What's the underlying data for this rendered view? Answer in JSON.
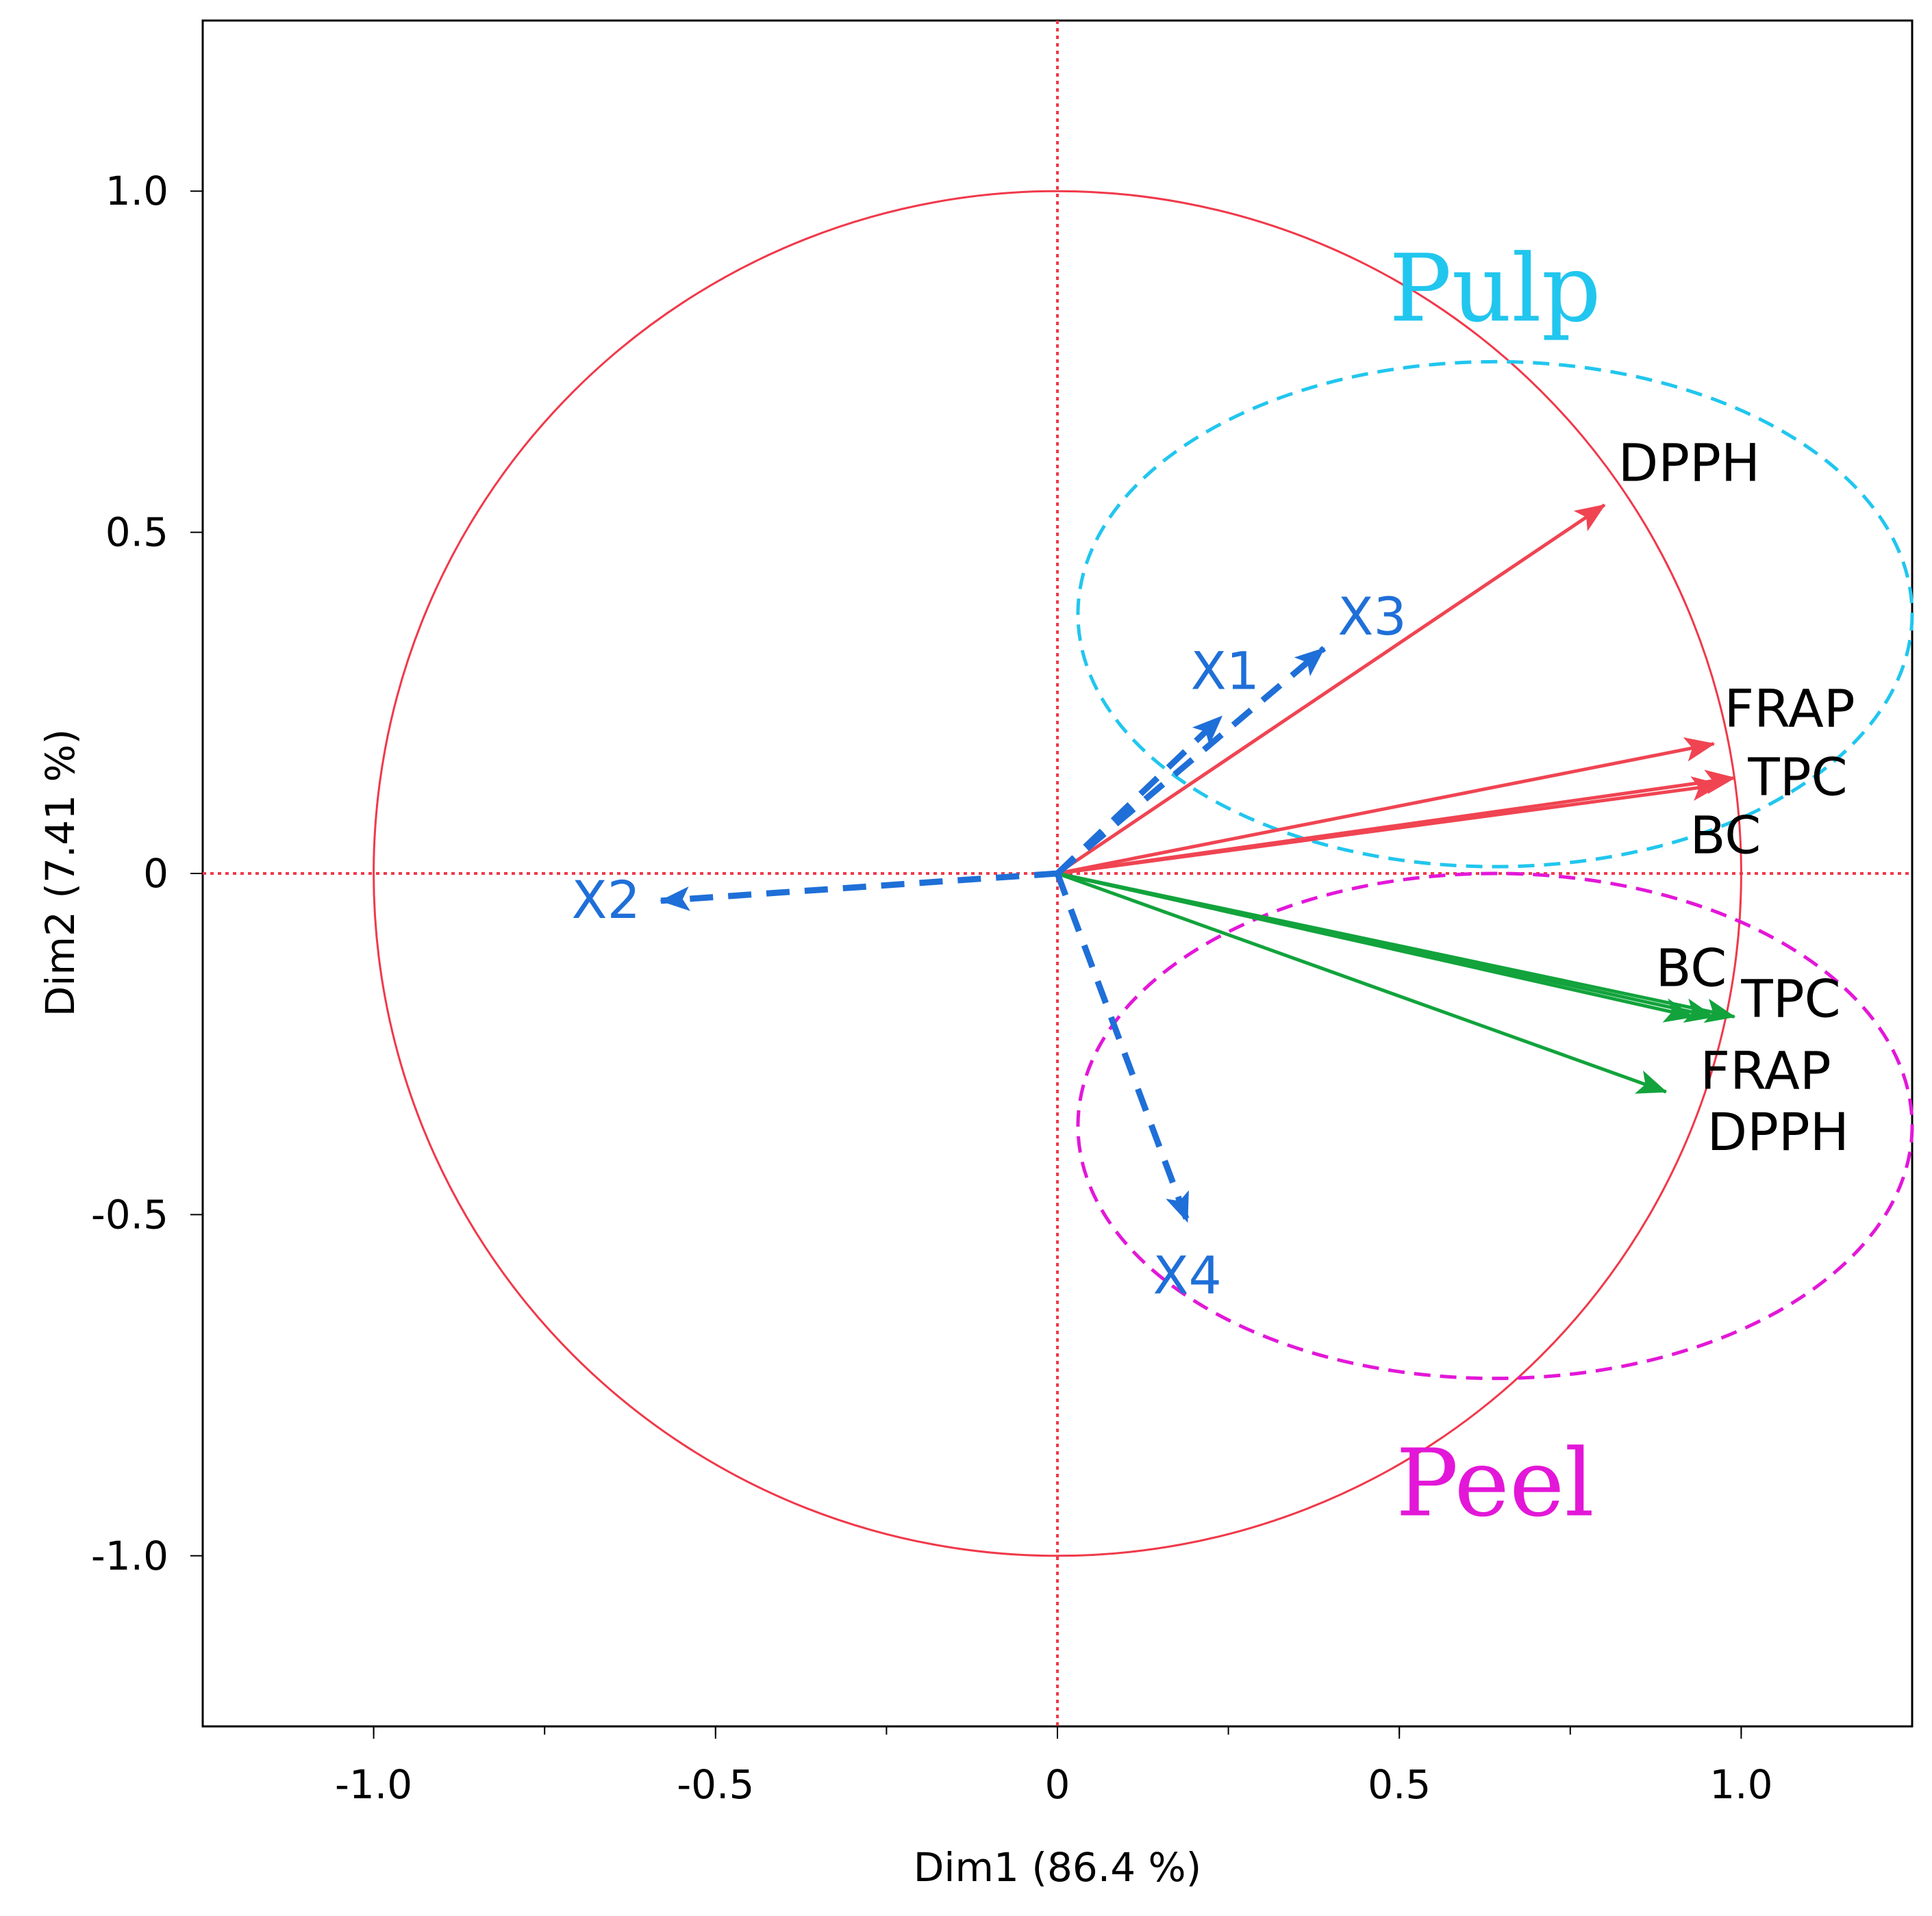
{
  "chart_data": {
    "type": "scatter",
    "subtype": "pca-variables-factor-map",
    "xlabel": "Dim1  (86.4 %)",
    "ylabel": "Dim2  (7.41 %)",
    "xlim": [
      -1.25,
      1.25
    ],
    "ylim": [
      -1.25,
      1.25
    ],
    "x_ticks": [
      {
        "value": -1.0,
        "label": "-1.0"
      },
      {
        "value": -0.5,
        "label": "-0.5"
      },
      {
        "value": 0,
        "label": "0"
      },
      {
        "value": 0.5,
        "label": "0.5"
      },
      {
        "value": 1.0,
        "label": "1.0"
      }
    ],
    "y_ticks": [
      {
        "value": 1.0,
        "label": "1.0"
      },
      {
        "value": 0.5,
        "label": "0.5"
      },
      {
        "value": 0,
        "label": "0"
      },
      {
        "value": -0.5,
        "label": "-0.5"
      },
      {
        "value": -1.0,
        "label": "-1.0"
      }
    ],
    "x_minor_ticks": [
      -1.0,
      -0.75,
      -0.5,
      -0.25,
      0,
      0.25,
      0.5,
      0.75,
      1.0
    ],
    "grid": false,
    "unit_circle": {
      "radius": 1,
      "color": "#f0394a"
    },
    "reference_lines": [
      {
        "axis": "x",
        "value": 0
      },
      {
        "axis": "y",
        "value": 0
      }
    ],
    "reference_line_color": "#f0394a",
    "series": [
      {
        "color": "#f04452",
        "style": "solid",
        "points": [
          {
            "label": "DPPH",
            "x": 0.8,
            "y": 0.54
          },
          {
            "label": "FRAP",
            "x": 0.96,
            "y": 0.19
          },
          {
            "label": "TPC",
            "x": 0.99,
            "y": 0.14
          },
          {
            "label": "BC",
            "x": 0.97,
            "y": 0.13
          }
        ]
      },
      {
        "color": "#12a33c",
        "style": "solid",
        "points": [
          {
            "label": "BC",
            "x": 0.93,
            "y": -0.21
          },
          {
            "label": "TPC",
            "x": 0.99,
            "y": -0.21
          },
          {
            "label": "FRAP",
            "x": 0.96,
            "y": -0.21
          },
          {
            "label": "DPPH",
            "x": 0.89,
            "y": -0.32
          }
        ]
      },
      {
        "color": "#1f6fd8",
        "style": "dashed",
        "points": [
          {
            "label": "X1",
            "x": 0.24,
            "y": 0.23
          },
          {
            "label": "X3",
            "x": 0.39,
            "y": 0.33
          },
          {
            "label": "X2",
            "x": -0.58,
            "y": -0.04
          },
          {
            "label": "X4",
            "x": 0.19,
            "y": -0.51
          }
        ]
      }
    ],
    "groups": [
      {
        "label": "Pulp",
        "color": "#21c6ee",
        "cx": 0.64,
        "cy": 0.38,
        "rx": 0.61,
        "ry": 0.37
      },
      {
        "label": "Peel",
        "color": "#e317d8",
        "cx": 0.64,
        "cy": -0.37,
        "rx": 0.61,
        "ry": 0.37
      }
    ]
  }
}
